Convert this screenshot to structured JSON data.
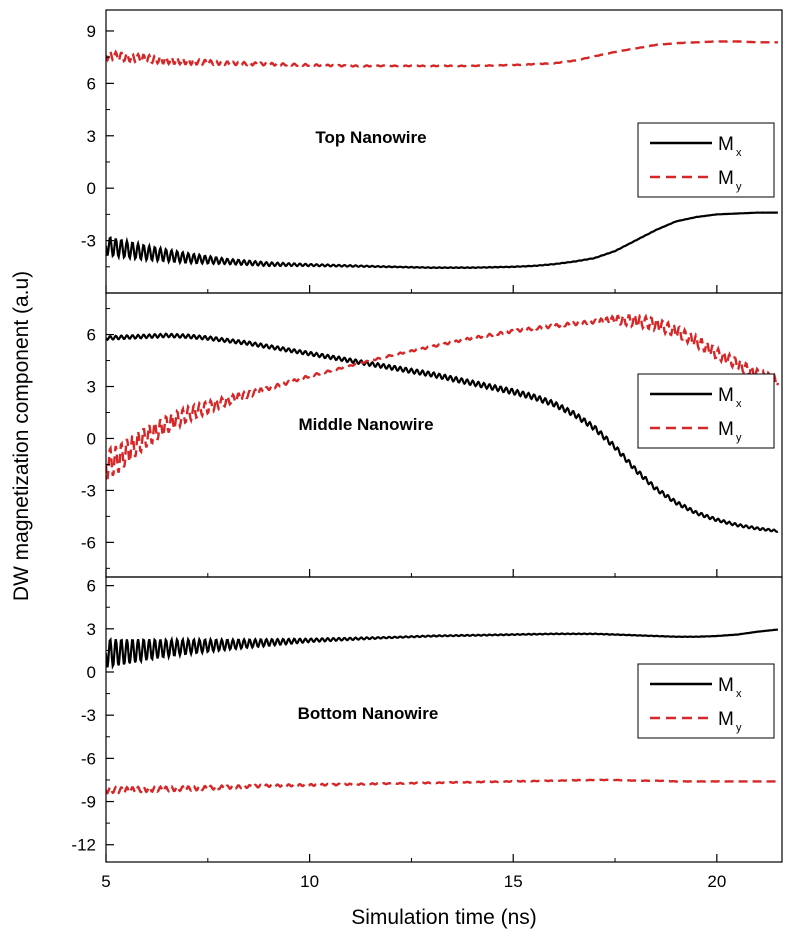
{
  "chart_data": {
    "type": "line",
    "xlabel": "Simulation time (ns)",
    "ylabel": "DW magnetization component (a.u)",
    "xlim": [
      5,
      21.6
    ],
    "x_ticks": [
      5,
      10,
      15,
      20
    ],
    "panels": [
      {
        "label": "Top Nanowire",
        "ylim": [
          -6,
          10.2
        ],
        "y_ticks": [
          -3,
          0,
          3,
          6,
          9
        ],
        "legend": [
          {
            "main": "M",
            "sub": "x"
          },
          {
            "main": "M",
            "sub": "y"
          }
        ],
        "series": [
          {
            "key": "Mx",
            "color": "#000000",
            "style": "solid",
            "x": [
              5,
              5.5,
              6,
              7,
              8,
              9,
              10,
              11,
              12,
              13,
              14,
              15,
              15.5,
              16,
              16.5,
              17,
              17.5,
              18,
              18.5,
              19,
              19.5,
              20,
              20.5,
              21,
              21.5
            ],
            "y": [
              -3.3,
              -3.5,
              -3.7,
              -4.0,
              -4.2,
              -4.35,
              -4.4,
              -4.45,
              -4.5,
              -4.55,
              -4.55,
              -4.5,
              -4.45,
              -4.35,
              -4.2,
              -4.0,
              -3.6,
              -3.0,
              -2.4,
              -1.9,
              -1.65,
              -1.5,
              -1.45,
              -1.4,
              -1.4
            ],
            "wiggle": [
              [
                5,
                0.55
              ],
              [
                6.5,
                0.35
              ],
              [
                8,
                0.15
              ],
              [
                10,
                0.06
              ],
              [
                12,
                0.02
              ],
              [
                21.5,
                0
              ]
            ]
          },
          {
            "key": "My",
            "color": "#d62728",
            "style": "dashed",
            "x": [
              5,
              5.5,
              6,
              7,
              8,
              9,
              10,
              11,
              12,
              13,
              14,
              15,
              16,
              16.5,
              17,
              17.5,
              18,
              18.5,
              19,
              19.5,
              20,
              20.5,
              21,
              21.5
            ],
            "y": [
              7.6,
              7.5,
              7.4,
              7.25,
              7.15,
              7.1,
              7.05,
              7.0,
              7.0,
              7.0,
              7.0,
              7.05,
              7.15,
              7.3,
              7.55,
              7.8,
              8.0,
              8.2,
              8.3,
              8.35,
              8.4,
              8.4,
              8.35,
              8.35
            ],
            "wiggle": [
              [
                5,
                0.25
              ],
              [
                6.5,
                0.2
              ],
              [
                8,
                0.1
              ],
              [
                10,
                0.05
              ],
              [
                12,
                0.02
              ],
              [
                21.5,
                0
              ]
            ]
          }
        ]
      },
      {
        "label": "Middle Nanowire",
        "ylim": [
          -8,
          8.4
        ],
        "y_ticks": [
          -6,
          -3,
          0,
          3,
          6
        ],
        "legend": [
          {
            "main": "M",
            "sub": "x"
          },
          {
            "main": "M",
            "sub": "y"
          }
        ],
        "series": [
          {
            "key": "Mx",
            "color": "#000000",
            "style": "solid",
            "x": [
              5,
              5.5,
              6,
              6.5,
              7,
              7.5,
              8,
              8.5,
              9,
              9.5,
              10,
              11,
              12,
              13,
              14,
              15,
              15.5,
              16,
              16.5,
              17,
              17.5,
              18,
              18.5,
              19,
              19.5,
              20,
              20.5,
              21,
              21.5
            ],
            "y": [
              5.8,
              5.85,
              5.9,
              5.95,
              5.9,
              5.8,
              5.65,
              5.5,
              5.3,
              5.1,
              4.9,
              4.5,
              4.1,
              3.7,
              3.2,
              2.7,
              2.4,
              2.0,
              1.4,
              0.6,
              -0.5,
              -1.8,
              -2.9,
              -3.7,
              -4.3,
              -4.7,
              -5.0,
              -5.2,
              -5.35
            ],
            "wiggle": [
              [
                5,
                0.1
              ],
              [
                10,
                0.1
              ],
              [
                15,
                0.15
              ],
              [
                17,
                0.15
              ],
              [
                21.5,
                0.05
              ]
            ]
          },
          {
            "key": "My",
            "color": "#d62728",
            "style": "dashed",
            "x": [
              5,
              5.3,
              5.6,
              6,
              6.5,
              7,
              7.5,
              8,
              9,
              10,
              11,
              12,
              13,
              14,
              15,
              16,
              17,
              17.5,
              18,
              18.5,
              19,
              19.5,
              20,
              20.5,
              21,
              21.5
            ],
            "y": [
              -1.5,
              -1.2,
              -0.6,
              0.1,
              0.8,
              1.4,
              1.8,
              2.2,
              2.9,
              3.6,
              4.2,
              4.8,
              5.3,
              5.8,
              6.2,
              6.5,
              6.75,
              6.85,
              6.8,
              6.6,
              6.2,
              5.6,
              4.9,
              4.3,
              3.7,
              3.3
            ],
            "wiggle": [
              [
                5,
                0.9
              ],
              [
                6,
                0.6
              ],
              [
                7.5,
                0.35
              ],
              [
                9,
                0.1
              ],
              [
                11,
                0.03
              ],
              [
                17,
                0.1
              ],
              [
                18,
                0.35
              ],
              [
                21.5,
                0.3
              ]
            ]
          }
        ]
      },
      {
        "label": "Bottom Nanowire",
        "ylim": [
          -13.2,
          6.6
        ],
        "y_ticks": [
          -12,
          -9,
          -6,
          -3,
          0,
          3,
          6
        ],
        "legend": [
          {
            "main": "M",
            "sub": "x"
          },
          {
            "main": "M",
            "sub": "y"
          }
        ],
        "series": [
          {
            "key": "Mx",
            "color": "#000000",
            "style": "solid",
            "x": [
              5,
              5.5,
              6,
              7,
              8,
              9,
              10,
              11,
              12,
              13,
              14,
              15,
              16,
              17,
              17.5,
              18,
              18.5,
              19,
              19.5,
              20,
              20.5,
              21,
              21.5
            ],
            "y": [
              1.3,
              1.4,
              1.55,
              1.75,
              1.9,
              2.05,
              2.2,
              2.3,
              2.4,
              2.5,
              2.55,
              2.6,
              2.65,
              2.65,
              2.6,
              2.55,
              2.5,
              2.45,
              2.45,
              2.5,
              2.6,
              2.8,
              2.95
            ],
            "wiggle": [
              [
                5,
                1.0
              ],
              [
                6.5,
                0.6
              ],
              [
                8,
                0.35
              ],
              [
                10,
                0.12
              ],
              [
                12,
                0.04
              ],
              [
                21.5,
                0
              ]
            ]
          },
          {
            "key": "My",
            "color": "#d62728",
            "style": "dashed",
            "x": [
              5,
              5.5,
              6,
              7,
              8,
              9,
              10,
              11,
              12,
              13,
              14,
              15,
              16,
              17,
              17.5,
              18,
              18.5,
              19,
              20,
              21,
              21.5
            ],
            "y": [
              -8.2,
              -8.2,
              -8.15,
              -8.1,
              -8.0,
              -7.9,
              -7.85,
              -7.8,
              -7.75,
              -7.7,
              -7.65,
              -7.6,
              -7.55,
              -7.5,
              -7.5,
              -7.55,
              -7.55,
              -7.6,
              -7.6,
              -7.6,
              -7.6
            ],
            "wiggle": [
              [
                5,
                0.2
              ],
              [
                7,
                0.15
              ],
              [
                9,
                0.08
              ],
              [
                12,
                0.03
              ],
              [
                21.5,
                0
              ]
            ]
          }
        ]
      }
    ]
  }
}
